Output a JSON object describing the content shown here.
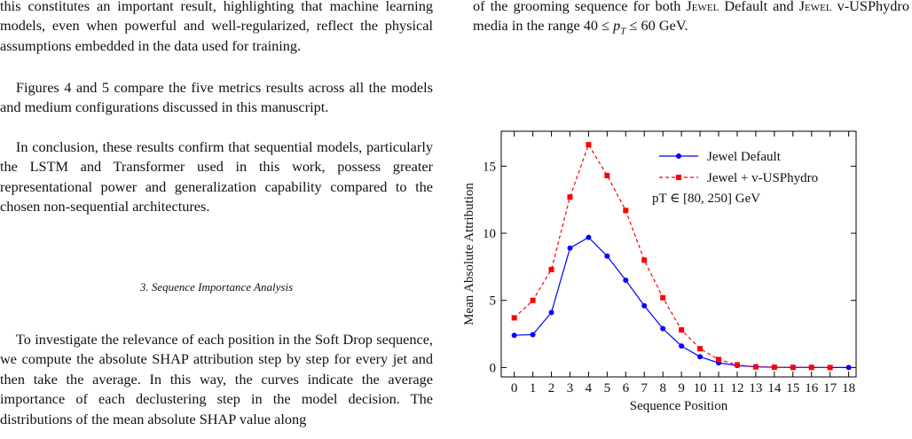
{
  "left_column": {
    "paragraphs": [
      "this constitutes an important result, highlighting that machine learning models, even when powerful and well-regularized, reflect the physical assumptions embedded in the data used for training.",
      "Figures 4 and 5 compare the five metrics results across all the models and medium configurations discussed in this manuscript.",
      "In conclusion, these results confirm that sequential models, particularly the LSTM and Transformer used in this work, possess greater representational power and generalization capability compared to the chosen non-sequential architectures."
    ],
    "section_heading": "3.  Sequence Importance Analysis",
    "section_paragraph": "To investigate the relevance of each position in the Soft Drop sequence, we compute the absolute SHAP attribution step by step for every jet and then take the average. In this way, the curves indicate the average importance of each declustering step in the model decision. The distributions of the mean absolute SHAP value along"
  },
  "right_column": {
    "segments": [
      "of the grooming sequence for both ",
      "Jewel",
      " Default and ",
      "Jewel",
      " v-USPhydro media in the range 40 ≤ ",
      "p",
      "T",
      " ≤ 60 GeV."
    ]
  },
  "chart_data": {
    "type": "line",
    "x_label": "Sequence Position",
    "y_label": "Mean Absolute Attribution",
    "annotation": "pT ∈ [80, 250] GeV",
    "x": [
      0,
      1,
      2,
      3,
      4,
      5,
      6,
      7,
      8,
      9,
      10,
      11,
      12,
      13,
      14,
      15,
      16,
      17,
      18
    ],
    "series": [
      {
        "name": "Jewel Default",
        "color": "#0000ff",
        "marker": "circle",
        "dash": "solid",
        "values": [
          2.4,
          2.45,
          4.1,
          8.9,
          9.7,
          8.3,
          6.5,
          4.6,
          2.9,
          1.6,
          0.8,
          0.35,
          0.15,
          0.05,
          0.02,
          0.01,
          0.01,
          0,
          0
        ]
      },
      {
        "name": "Jewel + v-USPhydro",
        "color": "#ff0000",
        "marker": "square",
        "dash": "dashed",
        "values": [
          3.7,
          5.0,
          7.3,
          12.7,
          16.6,
          14.3,
          11.7,
          8.0,
          5.2,
          2.8,
          1.4,
          0.6,
          0.2,
          0.05,
          0.02,
          0.01,
          0.01,
          0,
          null
        ]
      }
    ],
    "xlim": [
      -0.7,
      18.4
    ],
    "ylim": [
      -0.7,
      17.6
    ],
    "xticks": [
      0,
      1,
      2,
      3,
      4,
      5,
      6,
      7,
      8,
      9,
      10,
      11,
      12,
      13,
      14,
      15,
      16,
      17,
      18
    ],
    "yticks": [
      0,
      5,
      10,
      15
    ],
    "legend": "upper right"
  }
}
